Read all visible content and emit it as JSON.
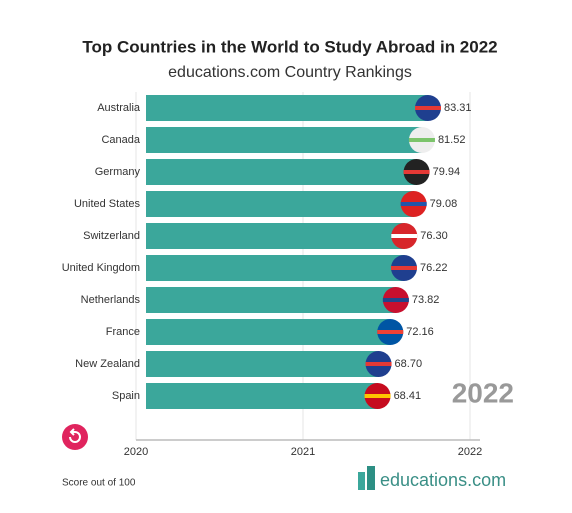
{
  "chart_data": {
    "type": "bar",
    "orientation": "horizontal",
    "title": "Top Countries in the World to Study Abroad in 2022",
    "subtitle": "educations.com Country Rankings",
    "categories": [
      "Australia",
      "Canada",
      "Germany",
      "United States",
      "Switzerland",
      "United Kingdom",
      "Netherlands",
      "France",
      "New Zealand",
      "Spain"
    ],
    "values": [
      83.31,
      81.52,
      79.94,
      79.08,
      76.3,
      76.22,
      73.82,
      72.16,
      68.7,
      68.41
    ],
    "value_labels": [
      "83.31",
      "81.52",
      "79.94",
      "79.08",
      "76.30",
      "76.22",
      "73.82",
      "72.16",
      "68.70",
      "68.41"
    ],
    "color": "#3ba79b",
    "current_year": 2022,
    "timeline_ticks": [
      2020,
      2021,
      2022
    ],
    "footnote": "Score out of 100",
    "brand": "educations.com"
  }
}
